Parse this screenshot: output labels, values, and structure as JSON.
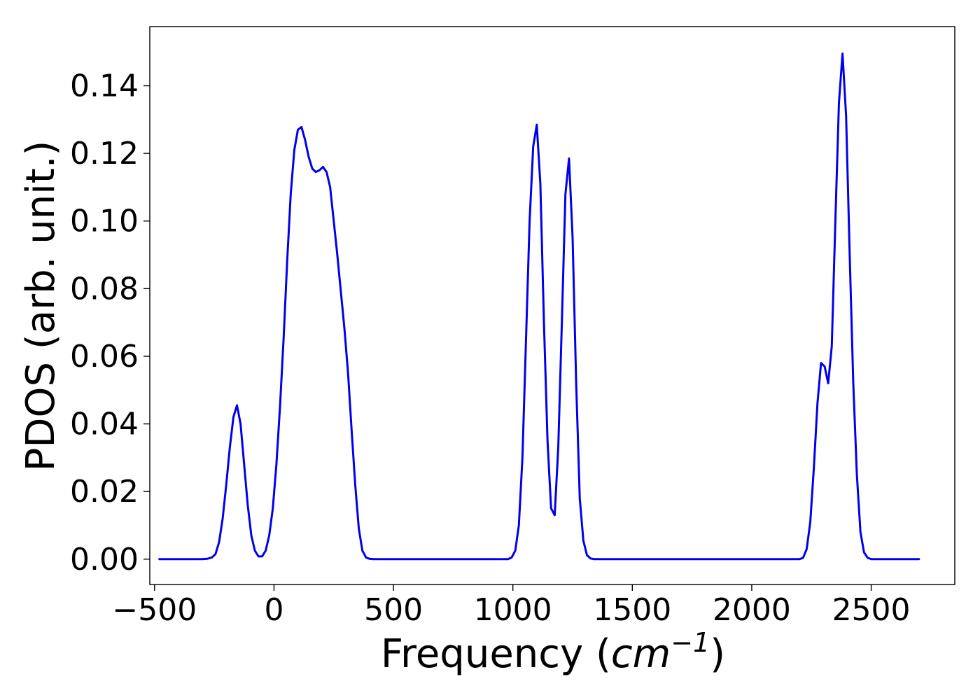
{
  "chart_data": {
    "type": "line",
    "title": "",
    "xlabel": "Frequency",
    "xlabel_unit_base": "cm",
    "xlabel_unit_exp": "−1",
    "ylabel": "PDOS (arb. unit.)",
    "xlim": [
      -520,
      2850
    ],
    "ylim": [
      -0.0075,
      0.1575
    ],
    "xticks": [
      -500,
      0,
      500,
      1000,
      1500,
      2000,
      2500
    ],
    "xtick_labels": [
      "−500",
      "0",
      "500",
      "1000",
      "1500",
      "2000",
      "2500"
    ],
    "yticks": [
      0.0,
      0.02,
      0.04,
      0.06,
      0.08,
      0.1,
      0.12,
      0.14
    ],
    "ytick_labels": [
      "0.00",
      "0.02",
      "0.04",
      "0.06",
      "0.08",
      "0.10",
      "0.12",
      "0.14"
    ],
    "grid": false,
    "legend": "none",
    "series": [
      {
        "color": "#0000ee",
        "x": [
          -480,
          -300,
          -280,
          -260,
          -245,
          -230,
          -215,
          -200,
          -185,
          -170,
          -155,
          -140,
          -125,
          -110,
          -95,
          -80,
          -65,
          -50,
          -35,
          -20,
          -5,
          10,
          25,
          40,
          55,
          70,
          85,
          100,
          115,
          130,
          145,
          160,
          175,
          190,
          205,
          220,
          235,
          250,
          265,
          280,
          295,
          310,
          325,
          340,
          355,
          370,
          385,
          400,
          415,
          430,
          450,
          600,
          800,
          980,
          995,
          1010,
          1025,
          1040,
          1055,
          1070,
          1085,
          1100,
          1115,
          1130,
          1145,
          1160,
          1175,
          1190,
          1205,
          1220,
          1235,
          1250,
          1265,
          1280,
          1295,
          1310,
          1325,
          1340,
          1355,
          1370,
          1400,
          1600,
          1800,
          2000,
          2200,
          2215,
          2230,
          2245,
          2260,
          2275,
          2290,
          2305,
          2320,
          2335,
          2350,
          2365,
          2380,
          2395,
          2410,
          2425,
          2440,
          2455,
          2470,
          2485,
          2500,
          2515,
          2530,
          2545,
          2560,
          2700
        ],
        "y": [
          0.0,
          0.0,
          0.0001,
          0.0005,
          0.0015,
          0.005,
          0.012,
          0.022,
          0.033,
          0.042,
          0.0455,
          0.04,
          0.028,
          0.016,
          0.007,
          0.0025,
          0.0008,
          0.0008,
          0.0025,
          0.007,
          0.015,
          0.028,
          0.045,
          0.065,
          0.088,
          0.108,
          0.121,
          0.127,
          0.1278,
          0.124,
          0.119,
          0.1155,
          0.1145,
          0.115,
          0.116,
          0.1145,
          0.11,
          0.1,
          0.09,
          0.079,
          0.068,
          0.055,
          0.038,
          0.022,
          0.009,
          0.0025,
          0.0005,
          0.0001,
          0.0,
          0.0,
          0.0,
          0.0,
          0.0,
          0.0,
          0.0005,
          0.0025,
          0.01,
          0.03,
          0.065,
          0.1,
          0.122,
          0.1285,
          0.111,
          0.07,
          0.035,
          0.015,
          0.013,
          0.033,
          0.07,
          0.108,
          0.1185,
          0.095,
          0.052,
          0.018,
          0.0055,
          0.0012,
          0.0002,
          0.0,
          0.0,
          0.0,
          0.0,
          0.0,
          0.0,
          0.0,
          0.0,
          0.0004,
          0.003,
          0.011,
          0.027,
          0.046,
          0.058,
          0.057,
          0.052,
          0.063,
          0.1,
          0.135,
          0.1495,
          0.131,
          0.09,
          0.052,
          0.025,
          0.008,
          0.002,
          0.0004,
          0.0,
          0.0,
          0.0,
          0.0,
          0.0,
          0.0
        ]
      }
    ]
  }
}
